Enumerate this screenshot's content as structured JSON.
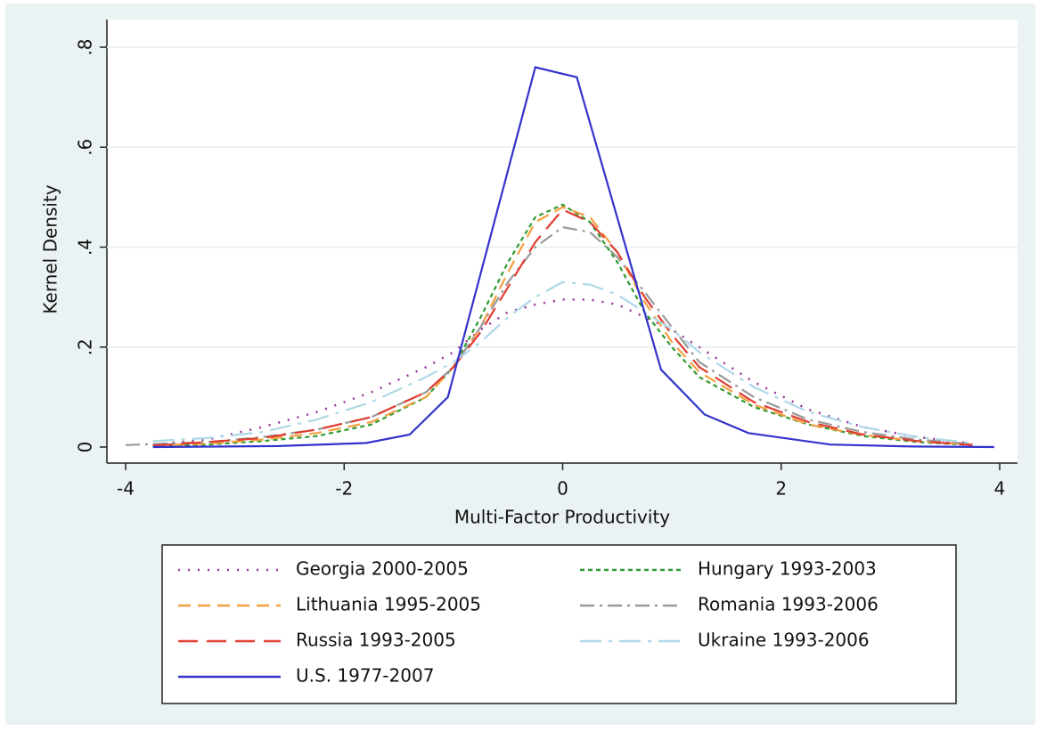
{
  "chart_data": {
    "type": "line",
    "x_label": "Multi-Factor Productivity",
    "y_label": "Kernel Density",
    "xlim": [
      -4,
      4
    ],
    "ylim": [
      0,
      0.8
    ],
    "xticks": [
      -4,
      -2,
      0,
      2,
      4
    ],
    "yticks": [
      0,
      {
        "value": 0.2,
        "label": ".2"
      },
      {
        "value": 0.4,
        "label": ".4"
      },
      {
        "value": 0.6,
        "label": ".6"
      },
      {
        "value": 0.8,
        "label": ".8"
      }
    ],
    "grid": true,
    "series": [
      {
        "name": "Georgia 2000-2005",
        "color": "#993399",
        "style": "dotted",
        "x": [
          -3.75,
          -3.25,
          -2.75,
          -2.25,
          -1.75,
          -1.25,
          -1,
          -0.75,
          -0.5,
          -0.25,
          0,
          0.25,
          0.5,
          0.75,
          1,
          1.25,
          1.75,
          2.25,
          2.75,
          3.25,
          3.75
        ],
        "values": [
          0.005,
          0.015,
          0.04,
          0.07,
          0.11,
          0.16,
          0.19,
          0.235,
          0.27,
          0.285,
          0.295,
          0.295,
          0.285,
          0.26,
          0.235,
          0.2,
          0.13,
          0.075,
          0.04,
          0.02,
          0.007
        ]
      },
      {
        "name": "Hungary 1993-2003",
        "color": "#2e9a2e",
        "style": "short-dash",
        "x": [
          -3.75,
          -3.25,
          -2.75,
          -2.25,
          -1.75,
          -1.25,
          -1,
          -0.75,
          -0.5,
          -0.25,
          0,
          0.25,
          0.5,
          0.75,
          1,
          1.25,
          1.75,
          2.25,
          2.75,
          3.25,
          3.75
        ],
        "values": [
          0.002,
          0.005,
          0.012,
          0.022,
          0.045,
          0.1,
          0.16,
          0.26,
          0.37,
          0.46,
          0.485,
          0.45,
          0.37,
          0.27,
          0.2,
          0.14,
          0.08,
          0.045,
          0.022,
          0.01,
          0.004
        ]
      },
      {
        "name": "Lithuania 1995-2005",
        "color": "#f5a040",
        "style": "dashed",
        "x": [
          -3.75,
          -3.25,
          -2.75,
          -2.25,
          -1.75,
          -1.25,
          -1,
          -0.75,
          -0.5,
          -0.25,
          0,
          0.25,
          0.5,
          0.75,
          1,
          1.25,
          1.75,
          2.25,
          2.75,
          3.25,
          3.75
        ],
        "values": [
          0.003,
          0.007,
          0.015,
          0.028,
          0.05,
          0.1,
          0.16,
          0.24,
          0.35,
          0.45,
          0.48,
          0.46,
          0.39,
          0.29,
          0.21,
          0.15,
          0.085,
          0.045,
          0.024,
          0.012,
          0.005
        ]
      },
      {
        "name": "Romania 1993-2006",
        "color": "#999999",
        "style": "dash-dot",
        "x": [
          -4,
          -3.25,
          -2.75,
          -2.25,
          -1.75,
          -1.25,
          -1,
          -0.75,
          -0.5,
          -0.25,
          0,
          0.25,
          0.5,
          0.75,
          1,
          1.25,
          1.75,
          2.25,
          2.75,
          3.25,
          3.75
        ],
        "values": [
          0.004,
          0.01,
          0.02,
          0.035,
          0.06,
          0.11,
          0.16,
          0.24,
          0.33,
          0.4,
          0.44,
          0.43,
          0.38,
          0.31,
          0.24,
          0.17,
          0.1,
          0.055,
          0.03,
          0.015,
          0.006
        ]
      },
      {
        "name": "Russia 1993-2005",
        "color": "#e03c31",
        "style": "long-dash",
        "x": [
          -3.75,
          -3.25,
          -2.75,
          -2.25,
          -1.75,
          -1.25,
          -1,
          -0.75,
          -0.5,
          -0.25,
          0,
          0.25,
          0.5,
          0.75,
          1,
          1.25,
          1.75,
          2.25,
          2.75,
          3.25,
          3.75
        ],
        "values": [
          0.003,
          0.01,
          0.018,
          0.035,
          0.06,
          0.11,
          0.16,
          0.23,
          0.32,
          0.41,
          0.475,
          0.45,
          0.39,
          0.3,
          0.225,
          0.16,
          0.09,
          0.05,
          0.025,
          0.012,
          0.004
        ]
      },
      {
        "name": "Ukraine 1993-2006",
        "color": "#add8e6",
        "style": "long-dash-dot",
        "x": [
          -3.75,
          -3.25,
          -2.75,
          -2.25,
          -1.75,
          -1.25,
          -1,
          -0.75,
          -0.5,
          -0.25,
          0,
          0.25,
          0.5,
          0.75,
          1,
          1.25,
          1.75,
          2.25,
          2.75,
          3.25,
          3.75
        ],
        "values": [
          0.012,
          0.018,
          0.03,
          0.055,
          0.09,
          0.14,
          0.17,
          0.21,
          0.26,
          0.3,
          0.33,
          0.325,
          0.305,
          0.27,
          0.235,
          0.19,
          0.12,
          0.07,
          0.04,
          0.02,
          0.008
        ]
      },
      {
        "name": "U.S. 1977-2007",
        "color": "#3333cc",
        "style": "solid",
        "x": [
          -3.75,
          -2.6,
          -1.8,
          -1.4,
          -1.05,
          -0.25,
          0.13,
          0.9,
          1.3,
          1.7,
          2.45,
          3.2,
          3.95
        ],
        "values": [
          0,
          0.002,
          0.008,
          0.025,
          0.1,
          0.76,
          0.74,
          0.155,
          0.065,
          0.028,
          0.005,
          0.001,
          0
        ]
      }
    ]
  }
}
